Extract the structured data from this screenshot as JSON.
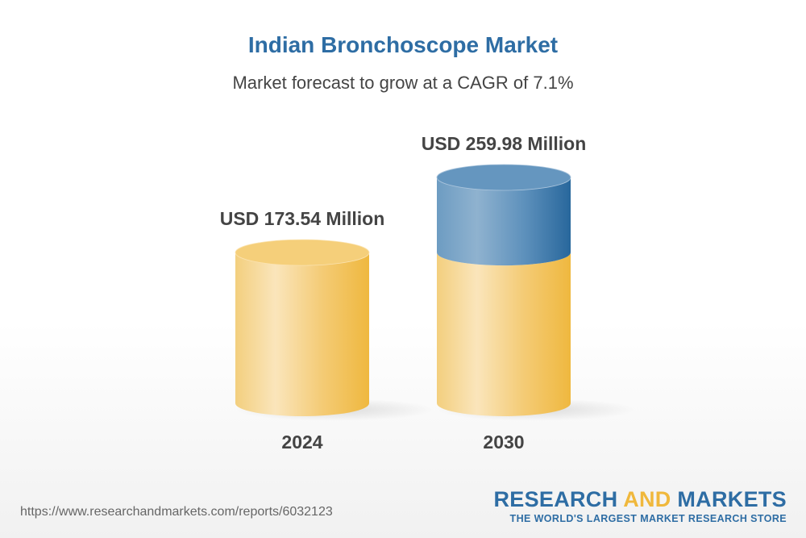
{
  "chart_data": {
    "type": "bar",
    "title": "Indian Bronchoscope Market",
    "subtitle": "Market forecast to grow at a CAGR of 7.1%",
    "categories": [
      "2024",
      "2030"
    ],
    "values": [
      173.54,
      259.98
    ],
    "data_labels": [
      "USD 173.54 Million",
      "USD 259.98 Million"
    ],
    "style": "3d-cylinder",
    "colors": {
      "base": "#f0b83c",
      "growth": "#2e6da4"
    },
    "grid": false
  },
  "footer": {
    "url": "https://www.researchandmarkets.com/reports/6032123",
    "logo_part1": "RESEARCH ",
    "logo_part2": "AND",
    "logo_part3": " MARKETS",
    "tagline": "THE WORLD'S LARGEST MARKET RESEARCH STORE"
  }
}
